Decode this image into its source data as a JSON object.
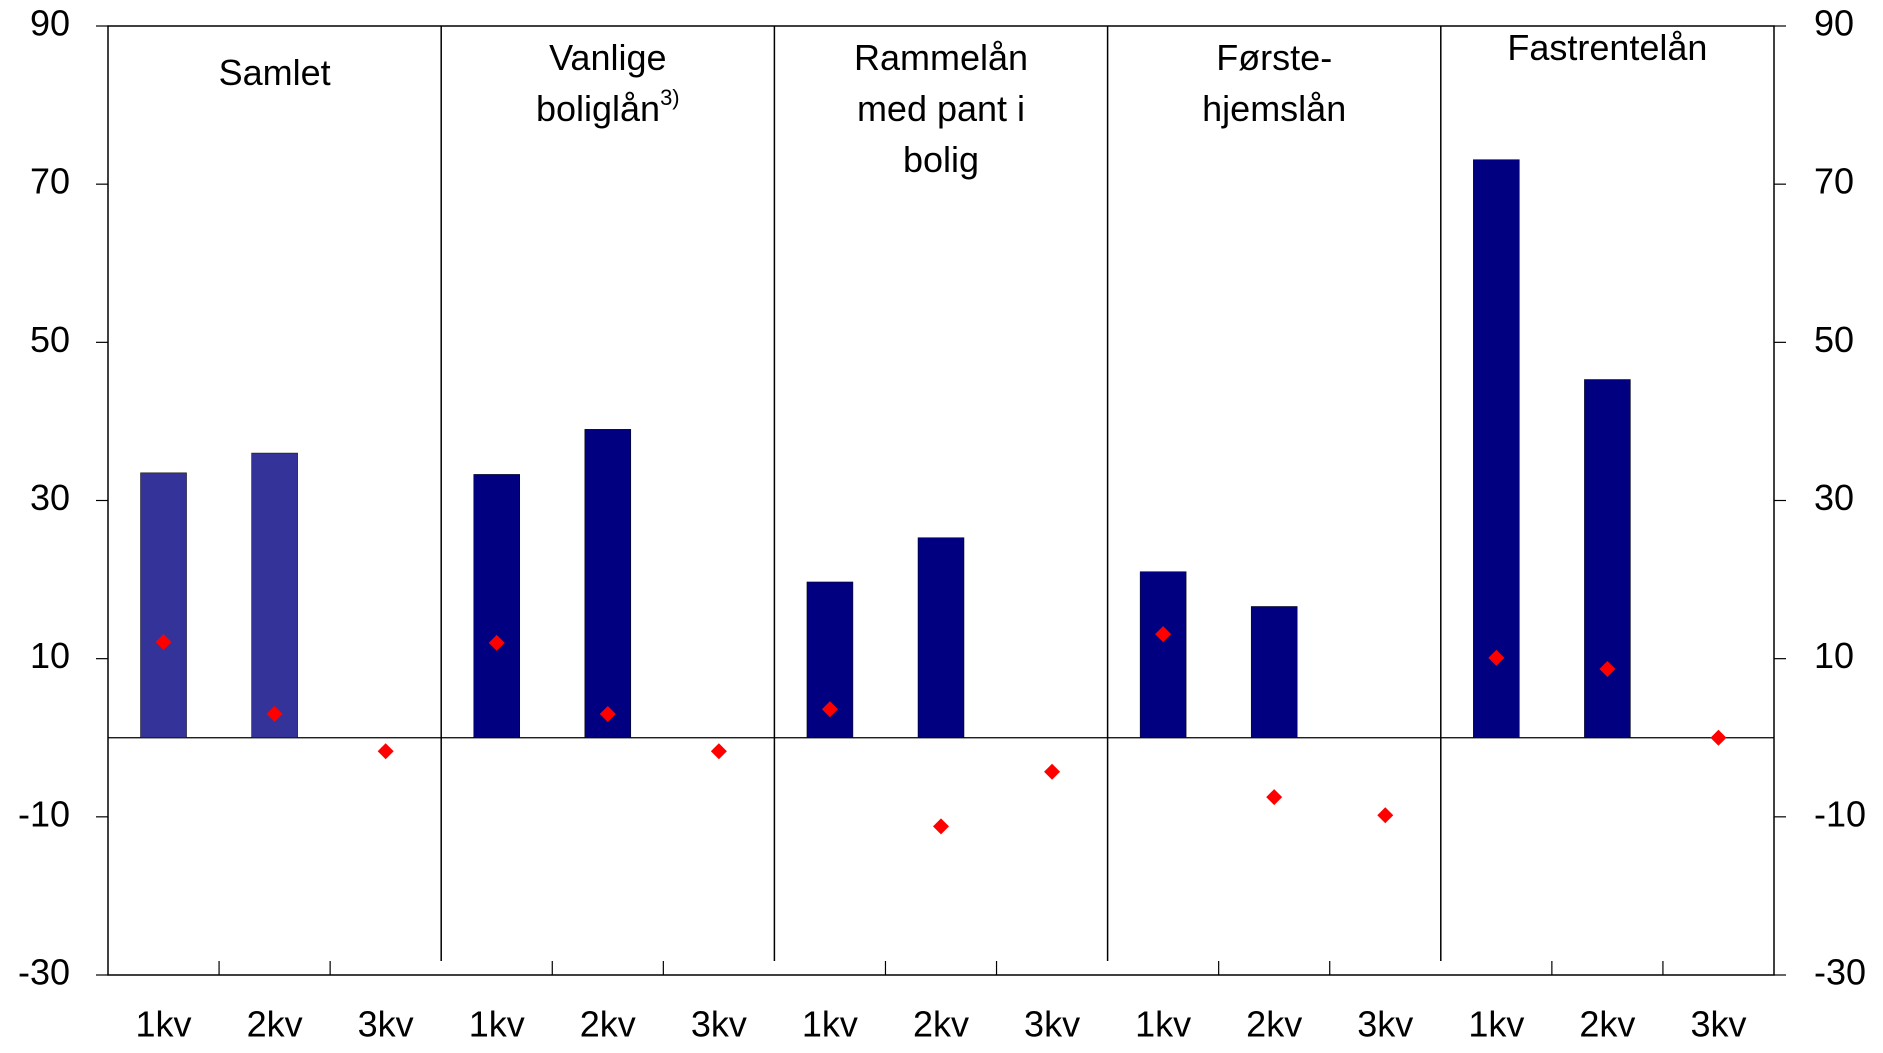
{
  "chart_data": {
    "type": "bar",
    "panels": [
      {
        "lines": [
          "Samlet"
        ]
      },
      {
        "lines": [
          "Vanlige",
          "boliglån"
        ],
        "superscript": "3)"
      },
      {
        "lines": [
          "Rammelån",
          "med pant i",
          "bolig"
        ]
      },
      {
        "lines": [
          "Første-",
          "hjemslån"
        ]
      },
      {
        "lines": [
          "Fastrentelån"
        ]
      }
    ],
    "categories": [
      "1kv",
      "2kv",
      "3kv",
      "1kv",
      "2kv",
      "3kv",
      "1kv",
      "2kv",
      "3kv",
      "1kv",
      "2kv",
      "3kv",
      "1kv",
      "2kv",
      "3kv"
    ],
    "series": [
      {
        "type": "bar",
        "colors": [
          "#333399",
          "#333399",
          "#333399",
          "#000080",
          "#000080",
          "#000080",
          "#000080",
          "#000080",
          "#000080",
          "#000080",
          "#000080",
          "#000080",
          "#000080",
          "#000080",
          "#000080"
        ],
        "values": [
          33.5,
          36,
          null,
          33.3,
          39,
          null,
          19.7,
          25.3,
          null,
          21,
          16.6,
          null,
          73.1,
          45.3,
          null
        ]
      },
      {
        "type": "scatter",
        "color": "#ff0000",
        "values": [
          12.1,
          3,
          -1.7,
          12,
          3,
          -1.7,
          3.6,
          -11.2,
          -4.3,
          13.1,
          -7.5,
          -9.8,
          10.1,
          8.7,
          0
        ]
      }
    ],
    "ylim": [
      -30,
      90
    ],
    "yticks": [
      -30,
      -10,
      10,
      30,
      50,
      70,
      90
    ],
    "y2lim": [
      -30,
      90
    ],
    "y2ticks": [
      -30,
      -10,
      10,
      30,
      50,
      70,
      90
    ]
  }
}
